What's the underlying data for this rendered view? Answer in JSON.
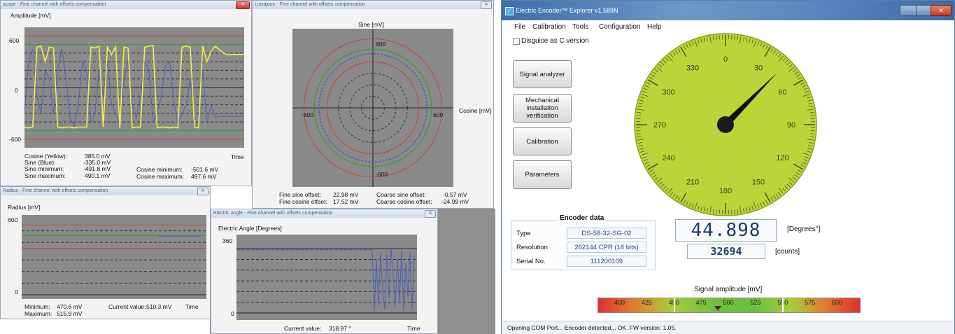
{
  "scope": {
    "title": "scope - Fine channel with offsets compensation",
    "ylabel": "Amplitude [mV]",
    "xlabel": "Time",
    "yticks": [
      "600",
      "0",
      "-600"
    ],
    "stats": [
      {
        "label": "Cosine (Yellow):",
        "value": "385.0 mV"
      },
      {
        "label": "Sine (Blue):",
        "value": "-335.0 mV"
      },
      {
        "label": "Sine minimum:",
        "value": "-491.8 mV"
      },
      {
        "label": "Sine maximum:",
        "value": "490.1 mV"
      }
    ],
    "stats2": [
      {
        "label": "Cosine minimum:",
        "value": "-501.6 mV"
      },
      {
        "label": "Cosine maximum:",
        "value": "497.6 mV"
      }
    ]
  },
  "lissajous": {
    "title": "Lissajous - Fine channel with offsets compensation",
    "ylabel": "Sine [mV]",
    "xlabel": "Cosine [mV]",
    "ticks": {
      "top": "600",
      "bottom": "-600",
      "left": "-600",
      "right": "600"
    },
    "offsets": [
      {
        "label": "Fine sine offset:",
        "value": "22.98 mV"
      },
      {
        "label": "Fine cosine offset:",
        "value": "17.52 mV"
      },
      {
        "label": "Coarse sine offset:",
        "value": "-0.57 mV"
      },
      {
        "label": "Coarse cosine offset:",
        "value": "-24.99 mV"
      }
    ]
  },
  "radius": {
    "title": "Radius - Fine channel with offsets compensation",
    "ylabel": "Radius [mV]",
    "xlabel": "Time",
    "yticks": [
      "600",
      "0"
    ],
    "minimum_label": "Minimum:",
    "minimum": "470.6 mV",
    "maximum_label": "Maximum:",
    "maximum": "515.9 mV",
    "current_label": "Current value:",
    "current": "510.3 mV"
  },
  "angle": {
    "title": "Electric angle - Fine channel with offsets compensation",
    "ylabel": "Electric Angle [Degrees]",
    "xlabel": "Time",
    "yticks": [
      "360",
      "0"
    ],
    "current_label": "Current value:",
    "current": "318.97 °"
  },
  "explorer": {
    "title": "Electric Encoder™ Explorer v1.589N",
    "menu": [
      "File",
      "Calibration",
      "Tools",
      "Configuration",
      "Help"
    ],
    "disguise_label": "Disguise as  C version",
    "buttons": [
      "Signal analyzer",
      "Mechanical installation verification",
      "Calibration",
      "Parameters"
    ],
    "dial_labels": [
      "0",
      "30",
      "60",
      "90",
      "120",
      "150",
      "180",
      "210",
      "240",
      "270",
      "300",
      "330"
    ],
    "dial_angle": 44.898,
    "encoder_data": {
      "heading": "Encoder data",
      "type_label": "Type",
      "type": "DS-58-32-SG-02",
      "resolution_label": "Resolution",
      "resolution": "262144 CPR (18 bits)",
      "serial_label": "Serial No.",
      "serial": "111200109"
    },
    "degrees": "44.898",
    "degrees_unit": "[Degrees°]",
    "counts": "32694",
    "counts_unit": "[counts]",
    "amplitude_title": "Signal amplitude [mV]",
    "amplitude_ticks": [
      "400",
      "425",
      "450",
      "475",
      "500",
      "525",
      "550",
      "575",
      "600"
    ],
    "amplitude_value": 490,
    "status": "Opening COM Port... Encoder detected... OK. FW version: 1.05."
  },
  "colors": {
    "cosine": "#f0f04a",
    "sine": "#4f5fb8",
    "dial": "#bcd43a",
    "ref_red": "#d04040",
    "ref_green": "#3a9a3a"
  }
}
